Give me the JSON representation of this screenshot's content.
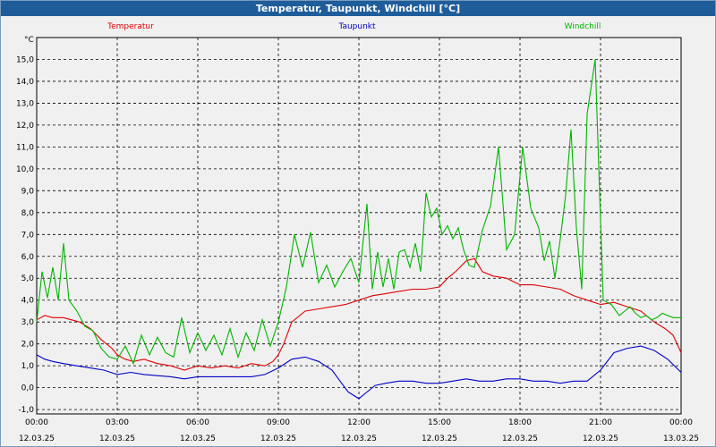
{
  "window": {
    "title": "Temperatur, Taupunkt, Windchill [°C]"
  },
  "chart_data": {
    "type": "line",
    "title": "Temperatur, Taupunkt, Windchill [°C]",
    "ylabel": "°C",
    "ylim": [
      -1.2,
      16.0
    ],
    "xlim": [
      0,
      24
    ],
    "grid": true,
    "legend_position": "top",
    "y_ticks": [
      "-1,0",
      "0,0",
      "1,0",
      "2,0",
      "3,0",
      "4,0",
      "5,0",
      "6,0",
      "7,0",
      "8,0",
      "9,0",
      "10,0",
      "11,0",
      "12,0",
      "13,0",
      "14,0",
      "15,0"
    ],
    "x_ticks": [
      {
        "time": "00:00",
        "date": "12.03.25"
      },
      {
        "time": "03:00",
        "date": "12.03.25"
      },
      {
        "time": "06:00",
        "date": "12.03.25"
      },
      {
        "time": "09:00",
        "date": "12.03.25"
      },
      {
        "time": "12:00",
        "date": "12.03.25"
      },
      {
        "time": "15:00",
        "date": "12.03.25"
      },
      {
        "time": "18:00",
        "date": "12.03.25"
      },
      {
        "time": "21:00",
        "date": "12.03.25"
      },
      {
        "time": "00:00",
        "date": "13.03.25"
      }
    ],
    "series": [
      {
        "name": "Temperatur",
        "color": "#e00000",
        "x": [
          0,
          0.3,
          0.6,
          1.0,
          1.3,
          1.6,
          2.0,
          2.4,
          2.8,
          3.0,
          3.3,
          3.6,
          4.0,
          4.5,
          5.0,
          5.5,
          6.0,
          6.5,
          7.0,
          7.5,
          8.0,
          8.5,
          8.8,
          9.0,
          9.2,
          9.5,
          10.0,
          10.5,
          11.0,
          11.5,
          12.0,
          12.5,
          13.0,
          13.5,
          14.0,
          14.5,
          15.0,
          15.3,
          15.6,
          16.0,
          16.3,
          16.6,
          17.0,
          17.5,
          18.0,
          18.5,
          19.0,
          19.5,
          20.0,
          20.5,
          21.0,
          21.5,
          22.0,
          22.5,
          23.0,
          23.4,
          23.7,
          24.0
        ],
        "values": [
          3.1,
          3.3,
          3.2,
          3.2,
          3.1,
          3.0,
          2.7,
          2.2,
          1.8,
          1.5,
          1.3,
          1.2,
          1.3,
          1.1,
          1.0,
          0.8,
          1.0,
          0.9,
          1.0,
          0.9,
          1.1,
          1.0,
          1.2,
          1.5,
          2.0,
          3.0,
          3.5,
          3.6,
          3.7,
          3.8,
          4.0,
          4.2,
          4.3,
          4.4,
          4.5,
          4.5,
          4.6,
          5.0,
          5.3,
          5.8,
          5.9,
          5.3,
          5.1,
          5.0,
          4.7,
          4.7,
          4.6,
          4.5,
          4.2,
          4.0,
          3.8,
          3.9,
          3.7,
          3.5,
          3.0,
          2.7,
          2.4,
          1.6
        ]
      },
      {
        "name": "Taupunkt",
        "color": "#0000c8",
        "x": [
          0,
          0.3,
          0.6,
          1.0,
          1.5,
          2.0,
          2.5,
          3.0,
          3.5,
          4.0,
          5.0,
          5.5,
          6.0,
          7.0,
          8.0,
          8.5,
          9.0,
          9.5,
          10.0,
          10.5,
          11.0,
          11.3,
          11.6,
          12.0,
          12.3,
          12.6,
          13.0,
          13.5,
          14.0,
          14.5,
          15.0,
          15.5,
          16.0,
          16.5,
          17.0,
          17.5,
          18.0,
          18.5,
          19.0,
          19.5,
          20.0,
          20.5,
          21.0,
          21.5,
          22.0,
          22.5,
          23.0,
          23.5,
          24.0
        ],
        "values": [
          1.5,
          1.3,
          1.2,
          1.1,
          1.0,
          0.9,
          0.8,
          0.6,
          0.7,
          0.6,
          0.5,
          0.4,
          0.5,
          0.5,
          0.5,
          0.6,
          0.9,
          1.3,
          1.4,
          1.2,
          0.8,
          0.3,
          -0.2,
          -0.5,
          -0.2,
          0.1,
          0.2,
          0.3,
          0.3,
          0.2,
          0.2,
          0.3,
          0.4,
          0.3,
          0.3,
          0.4,
          0.4,
          0.3,
          0.3,
          0.2,
          0.3,
          0.3,
          0.8,
          1.6,
          1.8,
          1.9,
          1.7,
          1.3,
          0.7
        ]
      },
      {
        "name": "Windchill",
        "color": "#00b400",
        "x": [
          0,
          0.2,
          0.4,
          0.6,
          0.8,
          1.0,
          1.2,
          1.5,
          1.8,
          2.1,
          2.4,
          2.7,
          3.0,
          3.3,
          3.6,
          3.9,
          4.2,
          4.5,
          4.8,
          5.1,
          5.4,
          5.7,
          6.0,
          6.3,
          6.6,
          6.9,
          7.2,
          7.5,
          7.8,
          8.1,
          8.4,
          8.7,
          9.0,
          9.3,
          9.6,
          9.9,
          10.2,
          10.5,
          10.8,
          11.1,
          11.4,
          11.7,
          12.0,
          12.3,
          12.5,
          12.7,
          12.9,
          13.1,
          13.3,
          13.5,
          13.7,
          13.9,
          14.1,
          14.3,
          14.5,
          14.7,
          14.9,
          15.1,
          15.3,
          15.5,
          15.7,
          15.9,
          16.1,
          16.3,
          16.6,
          16.9,
          17.2,
          17.5,
          17.8,
          18.1,
          18.4,
          18.7,
          18.9,
          19.1,
          19.3,
          19.5,
          19.7,
          19.9,
          20.1,
          20.3,
          20.5,
          20.8,
          21.1,
          21.4,
          21.7,
          21.9,
          22.1,
          22.3,
          22.5,
          22.7,
          22.9,
          23.1,
          23.3,
          23.5,
          23.7,
          24.0
        ],
        "values": [
          3.0,
          5.3,
          4.1,
          5.5,
          4.0,
          6.6,
          4.0,
          3.5,
          2.8,
          2.6,
          1.8,
          1.4,
          1.3,
          1.9,
          1.1,
          2.4,
          1.5,
          2.3,
          1.6,
          1.4,
          3.2,
          1.6,
          2.5,
          1.7,
          2.4,
          1.5,
          2.7,
          1.4,
          2.5,
          1.7,
          3.1,
          1.9,
          3.0,
          4.6,
          7.0,
          5.5,
          7.1,
          4.8,
          5.6,
          4.6,
          5.3,
          5.9,
          4.8,
          8.4,
          4.5,
          6.2,
          4.6,
          5.9,
          4.5,
          6.2,
          6.3,
          5.5,
          6.6,
          5.3,
          8.9,
          7.8,
          8.2,
          7.0,
          7.4,
          6.8,
          7.3,
          6.3,
          5.6,
          5.5,
          7.2,
          8.3,
          11.0,
          6.3,
          7.0,
          11.0,
          8.2,
          7.3,
          5.8,
          6.7,
          5.0,
          6.8,
          8.8,
          11.8,
          7.3,
          4.5,
          12.5,
          15.0,
          4.0,
          3.8,
          3.3,
          3.5,
          3.7,
          3.4,
          3.2,
          3.3,
          3.1,
          3.2,
          3.4,
          3.3,
          3.2,
          3.2
        ]
      }
    ]
  }
}
